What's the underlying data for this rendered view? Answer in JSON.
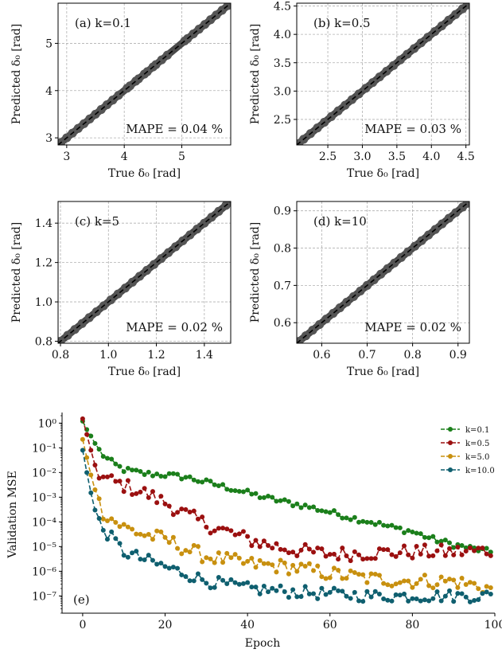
{
  "chart_data": [
    {
      "type": "scatter",
      "panel": "(a) k=0.1",
      "annotation": "MAPE = 0.04 %",
      "xlabel": "True δ₀ [rad]",
      "ylabel": "Predicted δ₀ [rad]",
      "xlim": [
        2.85,
        5.85
      ],
      "ylim": [
        2.85,
        5.85
      ],
      "xticks": [
        "3",
        "4",
        "5"
      ],
      "xtick_values": [
        3,
        4,
        5
      ],
      "yticks": [
        "3",
        "4",
        "5"
      ],
      "ytick_values": [
        3,
        4,
        5
      ],
      "grid": true,
      "reference_line": "y = x",
      "points": [
        [
          2.9,
          2.9
        ],
        [
          3.0,
          3.0
        ],
        [
          3.1,
          3.1
        ],
        [
          3.2,
          3.2
        ],
        [
          3.3,
          3.3
        ],
        [
          3.4,
          3.4
        ],
        [
          3.5,
          3.5
        ],
        [
          3.6,
          3.6
        ],
        [
          3.7,
          3.7
        ],
        [
          3.8,
          3.8
        ],
        [
          3.9,
          3.9
        ],
        [
          4.05,
          4.05
        ],
        [
          4.1,
          4.1
        ],
        [
          4.2,
          4.2
        ],
        [
          4.25,
          4.25
        ],
        [
          4.35,
          4.35
        ],
        [
          4.4,
          4.4
        ],
        [
          4.5,
          4.5
        ],
        [
          4.55,
          4.55
        ],
        [
          4.65,
          4.65
        ],
        [
          4.75,
          4.75
        ],
        [
          5.05,
          5.05
        ],
        [
          5.1,
          5.1
        ],
        [
          5.2,
          5.2
        ],
        [
          5.3,
          5.3
        ],
        [
          5.4,
          5.4
        ],
        [
          5.5,
          5.5
        ],
        [
          5.6,
          5.6
        ],
        [
          5.7,
          5.7
        ],
        [
          5.8,
          5.8
        ]
      ]
    },
    {
      "type": "scatter",
      "panel": "(b) k=0.5",
      "annotation": "MAPE = 0.03 %",
      "xlabel": "True δ₀ [rad]",
      "ylabel": "Predicted δ₀ [rad]",
      "xlim": [
        2.05,
        4.55
      ],
      "ylim": [
        2.05,
        4.55
      ],
      "xticks": [
        "2.5",
        "3.0",
        "3.5",
        "4.0",
        "4.5"
      ],
      "xtick_values": [
        2.5,
        3.0,
        3.5,
        4.0,
        4.5
      ],
      "yticks": [
        "2.5",
        "3.0",
        "3.5",
        "4.0",
        "4.5"
      ],
      "ytick_values": [
        2.5,
        3.0,
        3.5,
        4.0,
        4.5
      ],
      "grid": true,
      "reference_line": "y = x",
      "points": [
        [
          2.07,
          2.07
        ],
        [
          2.15,
          2.15
        ],
        [
          2.25,
          2.25
        ],
        [
          2.35,
          2.35
        ],
        [
          2.45,
          2.45
        ],
        [
          2.55,
          2.55
        ],
        [
          2.65,
          2.65
        ],
        [
          2.75,
          2.75
        ],
        [
          2.85,
          2.85
        ],
        [
          2.95,
          2.95
        ],
        [
          3.05,
          3.05
        ],
        [
          3.15,
          3.15
        ],
        [
          3.25,
          3.25
        ],
        [
          3.35,
          3.35
        ],
        [
          3.45,
          3.45
        ],
        [
          3.55,
          3.55
        ],
        [
          3.65,
          3.65
        ],
        [
          3.75,
          3.75
        ],
        [
          3.85,
          3.85
        ],
        [
          3.95,
          3.95
        ],
        [
          4.05,
          4.05
        ],
        [
          4.15,
          4.15
        ],
        [
          4.25,
          4.25
        ],
        [
          4.35,
          4.35
        ],
        [
          4.45,
          4.45
        ],
        [
          4.52,
          4.52
        ]
      ]
    },
    {
      "type": "scatter",
      "panel": "(c) k=5",
      "annotation": "MAPE = 0.02 %",
      "xlabel": "True δ₀ [rad]",
      "ylabel": "Predicted δ₀ [rad]",
      "xlim": [
        0.79,
        1.51
      ],
      "ylim": [
        0.79,
        1.51
      ],
      "xticks": [
        "0.8",
        "1.0",
        "1.2",
        "1.4"
      ],
      "xtick_values": [
        0.8,
        1.0,
        1.2,
        1.4
      ],
      "yticks": [
        "0.8",
        "1.0",
        "1.2",
        "1.4"
      ],
      "ytick_values": [
        0.8,
        1.0,
        1.2,
        1.4
      ],
      "grid": true,
      "reference_line": "y = x",
      "points": [
        [
          0.8,
          0.8
        ],
        [
          0.83,
          0.83
        ],
        [
          0.86,
          0.86
        ],
        [
          0.89,
          0.89
        ],
        [
          0.92,
          0.92
        ],
        [
          0.95,
          0.95
        ],
        [
          0.98,
          0.98
        ],
        [
          1.01,
          1.01
        ],
        [
          1.04,
          1.04
        ],
        [
          1.07,
          1.07
        ],
        [
          1.1,
          1.1
        ],
        [
          1.13,
          1.13
        ],
        [
          1.16,
          1.16
        ],
        [
          1.19,
          1.19
        ],
        [
          1.22,
          1.22
        ],
        [
          1.25,
          1.25
        ],
        [
          1.28,
          1.28
        ],
        [
          1.31,
          1.31
        ],
        [
          1.34,
          1.34
        ],
        [
          1.37,
          1.37
        ],
        [
          1.4,
          1.4
        ],
        [
          1.43,
          1.43
        ],
        [
          1.46,
          1.46
        ],
        [
          1.49,
          1.49
        ]
      ]
    },
    {
      "type": "scatter",
      "panel": "(d) k=10",
      "annotation": "MAPE = 0.02 %",
      "xlabel": "True δ₀ [rad]",
      "ylabel": "Predicted δ₀ [rad]",
      "xlim": [
        0.545,
        0.925
      ],
      "ylim": [
        0.545,
        0.925
      ],
      "xticks": [
        "0.6",
        "0.7",
        "0.8",
        "0.9"
      ],
      "xtick_values": [
        0.6,
        0.7,
        0.8,
        0.9
      ],
      "yticks": [
        "0.6",
        "0.7",
        "0.8",
        "0.9"
      ],
      "ytick_values": [
        0.6,
        0.7,
        0.8,
        0.9
      ],
      "grid": true,
      "reference_line": "y = x",
      "points": [
        [
          0.55,
          0.55
        ],
        [
          0.565,
          0.565
        ],
        [
          0.58,
          0.58
        ],
        [
          0.595,
          0.595
        ],
        [
          0.61,
          0.61
        ],
        [
          0.625,
          0.625
        ],
        [
          0.64,
          0.64
        ],
        [
          0.655,
          0.655
        ],
        [
          0.67,
          0.67
        ],
        [
          0.685,
          0.685
        ],
        [
          0.7,
          0.7
        ],
        [
          0.715,
          0.715
        ],
        [
          0.73,
          0.73
        ],
        [
          0.745,
          0.745
        ],
        [
          0.76,
          0.76
        ],
        [
          0.775,
          0.775
        ],
        [
          0.79,
          0.79
        ],
        [
          0.805,
          0.805
        ],
        [
          0.82,
          0.82
        ],
        [
          0.835,
          0.835
        ],
        [
          0.85,
          0.85
        ],
        [
          0.865,
          0.865
        ],
        [
          0.88,
          0.88
        ],
        [
          0.895,
          0.895
        ],
        [
          0.91,
          0.91
        ],
        [
          0.92,
          0.92
        ]
      ]
    },
    {
      "type": "line",
      "panel": "(e)",
      "xlabel": "Epoch",
      "ylabel": "Validation MSE",
      "xlim": [
        -5,
        100
      ],
      "yscale": "log",
      "ylim": [
        2e-08,
        2
      ],
      "xticks": [
        "0",
        "20",
        "40",
        "60",
        "80",
        "100"
      ],
      "xtick_values": [
        0,
        20,
        40,
        60,
        80,
        100
      ],
      "yticks": [
        "10⁰",
        "10⁻¹",
        "10⁻²",
        "10⁻³",
        "10⁻⁴",
        "10⁻⁵",
        "10⁻⁶",
        "10⁻⁷"
      ],
      "ytick_exponents": [
        0,
        -1,
        -2,
        -3,
        -4,
        -5,
        -6,
        -7
      ],
      "grid": false,
      "legend_position": "top-right",
      "series": [
        {
          "name": "k=0.1",
          "color": "#1b7f1b",
          "anchors": [
            [
              0,
              1.2
            ],
            [
              1,
              0.55
            ],
            [
              2,
              0.3
            ],
            [
              3,
              0.15
            ],
            [
              4,
              0.08
            ],
            [
              5,
              0.05
            ],
            [
              6,
              0.035
            ],
            [
              8,
              0.02
            ],
            [
              10,
              0.013
            ],
            [
              15,
              0.009
            ],
            [
              20,
              0.008
            ],
            [
              25,
              0.0065
            ],
            [
              30,
              0.004
            ],
            [
              35,
              0.0025
            ],
            [
              40,
              0.0015
            ],
            [
              45,
              0.0009
            ],
            [
              50,
              0.0006
            ],
            [
              55,
              0.0004
            ],
            [
              60,
              0.00025
            ],
            [
              65,
              0.00015
            ],
            [
              70,
              0.0001
            ],
            [
              75,
              6e-05
            ],
            [
              80,
              4e-05
            ],
            [
              85,
              2e-05
            ],
            [
              90,
              1.2e-05
            ],
            [
              95,
              8e-06
            ],
            [
              99,
              6e-06
            ]
          ],
          "noise": 0.12
        },
        {
          "name": "k=0.5",
          "color": "#9b1010",
          "anchors": [
            [
              0,
              1.5
            ],
            [
              1,
              0.35
            ],
            [
              2,
              0.08
            ],
            [
              3,
              0.02
            ],
            [
              4,
              0.009
            ],
            [
              5,
              0.006
            ],
            [
              10,
              0.003
            ],
            [
              15,
              0.0015
            ],
            [
              20,
              0.0006
            ],
            [
              25,
              0.0002
            ],
            [
              30,
              8e-05
            ],
            [
              35,
              4e-05
            ],
            [
              40,
              2e-05
            ],
            [
              45,
              1.2e-05
            ],
            [
              50,
              8e-06
            ],
            [
              55,
              6e-06
            ],
            [
              60,
              5e-06
            ],
            [
              70,
              5.5e-06
            ],
            [
              80,
              6e-06
            ],
            [
              90,
              6e-06
            ],
            [
              99,
              7e-06
            ]
          ],
          "noise": 0.3
        },
        {
          "name": "k=5.0",
          "color": "#c8900f",
          "anchors": [
            [
              0,
              0.22
            ],
            [
              1,
              0.04
            ],
            [
              2,
              0.008
            ],
            [
              3,
              0.002
            ],
            [
              4,
              0.0006
            ],
            [
              5,
              0.00025
            ],
            [
              8,
              0.0001
            ],
            [
              10,
              6e-05
            ],
            [
              15,
              3e-05
            ],
            [
              20,
              2e-05
            ],
            [
              25,
              8e-06
            ],
            [
              30,
              4e-06
            ],
            [
              40,
              2e-06
            ],
            [
              50,
              1.5e-06
            ],
            [
              60,
              8e-07
            ],
            [
              70,
              5e-07
            ],
            [
              80,
              4e-07
            ],
            [
              90,
              4e-07
            ],
            [
              99,
              2e-07
            ]
          ],
          "noise": 0.3
        },
        {
          "name": "k=10.0",
          "color": "#0f5f6f",
          "anchors": [
            [
              0,
              0.08
            ],
            [
              1,
              0.01
            ],
            [
              2,
              0.0015
            ],
            [
              3,
              0.0003
            ],
            [
              4,
              0.0001
            ],
            [
              5,
              5e-05
            ],
            [
              8,
              1.5e-05
            ],
            [
              10,
              6e-06
            ],
            [
              15,
              3e-06
            ],
            [
              20,
              1.5e-06
            ],
            [
              25,
              8e-07
            ],
            [
              30,
              4e-07
            ],
            [
              40,
              2e-07
            ],
            [
              50,
              1.5e-07
            ],
            [
              60,
              1.2e-07
            ],
            [
              70,
              1e-07
            ],
            [
              80,
              1e-07
            ],
            [
              90,
              1e-07
            ],
            [
              99,
              1e-07
            ]
          ],
          "noise": 0.25
        }
      ]
    }
  ]
}
